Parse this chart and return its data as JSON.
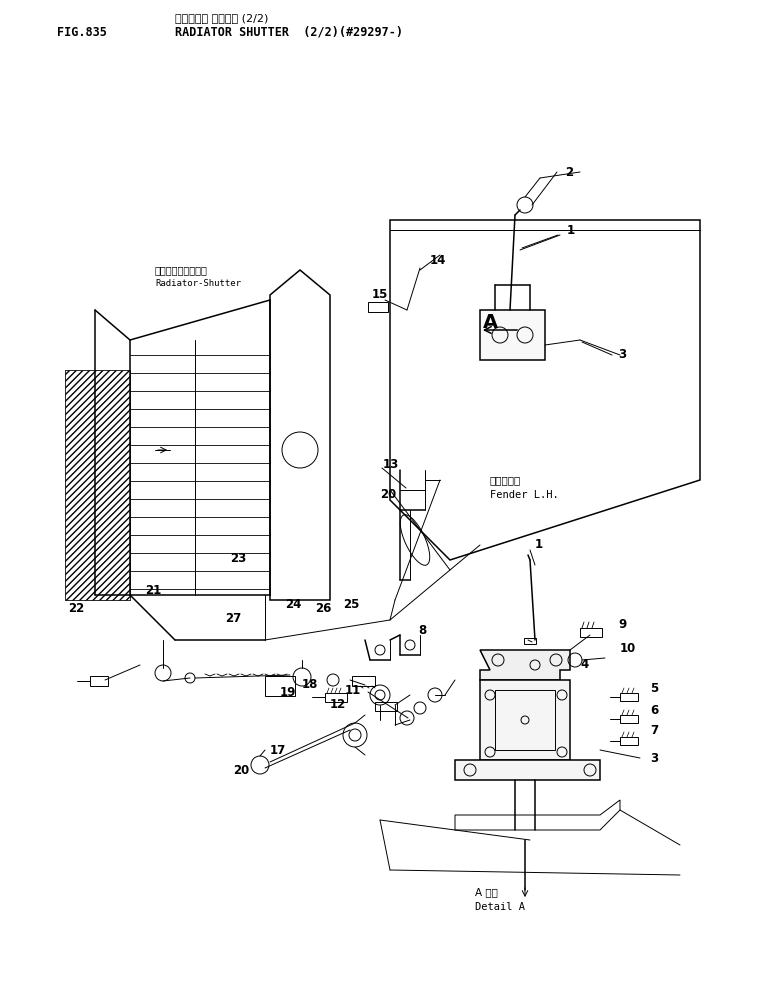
{
  "title_jp": "ラジエータ シャッタ (2/2)",
  "title_en": "RADIATOR SHUTTER  (2/2)(#29297-)",
  "fig_label": "FIG.835",
  "bg": "#ffffff",
  "lc": "#000000",
  "radiator_shutter_jp": "ラジエータシュータ",
  "radiator_shutter_en": "Radiator-Shutter",
  "fender_jp": "フェンダ左",
  "fender_en": "Fender L.H.",
  "detail_jp": "A 詳細",
  "detail_en": "Detail A"
}
